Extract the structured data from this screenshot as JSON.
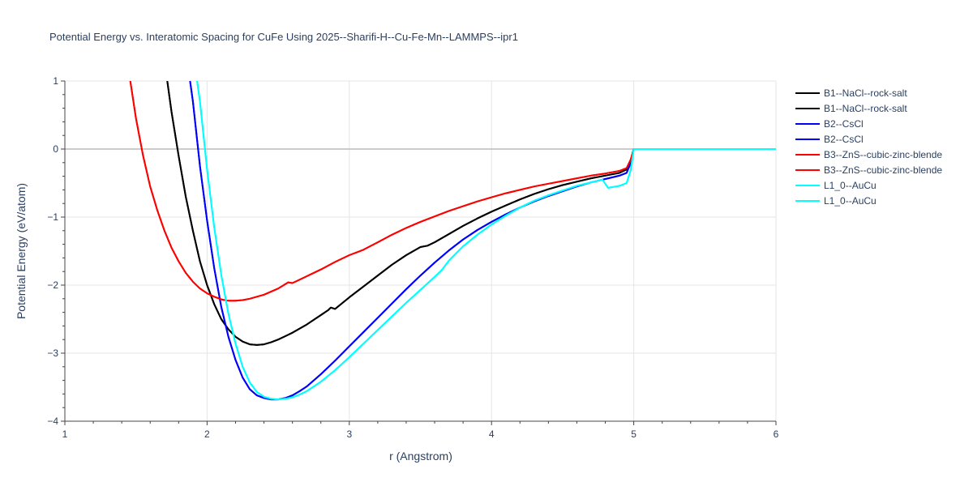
{
  "title": "Potential Energy vs. Interatomic Spacing for CuFe Using 2025--Sharifi-H--Cu-Fe-Mn--LAMMPS--ipr1",
  "chart_data": {
    "type": "line",
    "xlabel": "r (Angstrom)",
    "ylabel": "Potential Energy (eV/atom)",
    "xlim": [
      1,
      6
    ],
    "ylim": [
      -4,
      1
    ],
    "xticks": [
      1,
      2,
      3,
      4,
      5,
      6
    ],
    "xtick_labels": [
      "1",
      "2",
      "3",
      "4",
      "5",
      "6"
    ],
    "yticks": [
      1,
      0,
      -1,
      -2,
      -3,
      -4
    ],
    "ytick_labels": [
      "1",
      "0",
      "−1",
      "−2",
      "−3",
      "−4"
    ],
    "grid": true,
    "legend_position": "right",
    "series": [
      {
        "name": "B1--NaCl--rock-salt",
        "color": "#000000",
        "x": [
          1.72,
          1.75,
          1.8,
          1.85,
          1.9,
          1.95,
          2.0,
          2.05,
          2.1,
          2.15,
          2.2,
          2.25,
          2.3,
          2.35,
          2.4,
          2.45,
          2.5,
          2.55,
          2.6,
          2.7,
          2.8,
          2.85,
          2.87,
          2.9,
          3.0,
          3.1,
          3.2,
          3.3,
          3.4,
          3.5,
          3.55,
          3.6,
          3.7,
          3.8,
          3.9,
          4.0,
          4.1,
          4.2,
          4.3,
          4.4,
          4.5,
          4.6,
          4.7,
          4.8,
          4.9,
          4.95,
          4.98,
          5.0,
          6.0
        ],
        "y": [
          1.0,
          0.55,
          -0.1,
          -0.7,
          -1.2,
          -1.65,
          -2.0,
          -2.28,
          -2.5,
          -2.65,
          -2.76,
          -2.83,
          -2.87,
          -2.88,
          -2.87,
          -2.84,
          -2.8,
          -2.75,
          -2.7,
          -2.58,
          -2.44,
          -2.37,
          -2.33,
          -2.35,
          -2.18,
          -2.02,
          -1.86,
          -1.7,
          -1.56,
          -1.44,
          -1.42,
          -1.37,
          -1.25,
          -1.13,
          -1.02,
          -0.92,
          -0.83,
          -0.74,
          -0.66,
          -0.59,
          -0.53,
          -0.48,
          -0.43,
          -0.39,
          -0.35,
          -0.3,
          -0.15,
          0.0,
          0.0
        ]
      },
      {
        "name": "B1--NaCl--rock-salt",
        "color": "#000000",
        "x": [
          1.72,
          1.75,
          1.8,
          1.85,
          1.9,
          1.95,
          2.0,
          2.05,
          2.1,
          2.15,
          2.2,
          2.25,
          2.3,
          2.35,
          2.4,
          2.45,
          2.5,
          2.55,
          2.6,
          2.7,
          2.8,
          2.85,
          2.87,
          2.9,
          3.0,
          3.1,
          3.2,
          3.3,
          3.4,
          3.5,
          3.55,
          3.6,
          3.7,
          3.8,
          3.9,
          4.0,
          4.1,
          4.2,
          4.3,
          4.4,
          4.5,
          4.6,
          4.7,
          4.8,
          4.9,
          4.95,
          4.98,
          5.0,
          6.0
        ],
        "y": [
          1.0,
          0.55,
          -0.1,
          -0.7,
          -1.2,
          -1.65,
          -2.0,
          -2.28,
          -2.5,
          -2.65,
          -2.76,
          -2.83,
          -2.87,
          -2.88,
          -2.87,
          -2.84,
          -2.8,
          -2.75,
          -2.7,
          -2.58,
          -2.44,
          -2.37,
          -2.33,
          -2.35,
          -2.18,
          -2.02,
          -1.86,
          -1.7,
          -1.56,
          -1.44,
          -1.42,
          -1.37,
          -1.25,
          -1.13,
          -1.02,
          -0.92,
          -0.83,
          -0.74,
          -0.66,
          -0.59,
          -0.53,
          -0.48,
          -0.43,
          -0.39,
          -0.35,
          -0.3,
          -0.15,
          0.0,
          0.0
        ]
      },
      {
        "name": "B2--CsCl",
        "color": "#0000ff",
        "x": [
          1.88,
          1.9,
          1.95,
          2.0,
          2.05,
          2.1,
          2.15,
          2.2,
          2.25,
          2.3,
          2.35,
          2.4,
          2.45,
          2.5,
          2.55,
          2.6,
          2.65,
          2.7,
          2.8,
          2.9,
          3.0,
          3.1,
          3.2,
          3.3,
          3.4,
          3.5,
          3.6,
          3.7,
          3.8,
          3.9,
          4.0,
          4.1,
          4.2,
          4.3,
          4.4,
          4.5,
          4.6,
          4.7,
          4.8,
          4.9,
          4.95,
          4.98,
          5.0,
          6.0
        ],
        "y": [
          1.0,
          0.7,
          -0.25,
          -1.05,
          -1.75,
          -2.32,
          -2.76,
          -3.1,
          -3.36,
          -3.53,
          -3.62,
          -3.66,
          -3.68,
          -3.68,
          -3.66,
          -3.62,
          -3.56,
          -3.49,
          -3.31,
          -3.11,
          -2.9,
          -2.69,
          -2.48,
          -2.27,
          -2.06,
          -1.86,
          -1.67,
          -1.49,
          -1.33,
          -1.19,
          -1.07,
          -0.96,
          -0.86,
          -0.77,
          -0.69,
          -0.62,
          -0.55,
          -0.49,
          -0.44,
          -0.39,
          -0.35,
          -0.2,
          0.0,
          0.0
        ]
      },
      {
        "name": "B2--CsCl",
        "color": "#0000ff",
        "x": [
          1.88,
          1.9,
          1.95,
          2.0,
          2.05,
          2.1,
          2.15,
          2.2,
          2.25,
          2.3,
          2.35,
          2.4,
          2.45,
          2.5,
          2.55,
          2.6,
          2.65,
          2.7,
          2.8,
          2.9,
          3.0,
          3.1,
          3.2,
          3.3,
          3.4,
          3.5,
          3.6,
          3.7,
          3.8,
          3.9,
          4.0,
          4.1,
          4.2,
          4.3,
          4.4,
          4.5,
          4.6,
          4.7,
          4.8,
          4.9,
          4.95,
          4.98,
          5.0,
          6.0
        ],
        "y": [
          1.0,
          0.7,
          -0.25,
          -1.05,
          -1.75,
          -2.32,
          -2.76,
          -3.1,
          -3.36,
          -3.53,
          -3.62,
          -3.66,
          -3.68,
          -3.68,
          -3.66,
          -3.62,
          -3.56,
          -3.49,
          -3.31,
          -3.11,
          -2.9,
          -2.69,
          -2.48,
          -2.27,
          -2.06,
          -1.86,
          -1.67,
          -1.49,
          -1.33,
          -1.19,
          -1.07,
          -0.96,
          -0.86,
          -0.77,
          -0.69,
          -0.62,
          -0.55,
          -0.49,
          -0.44,
          -0.39,
          -0.35,
          -0.2,
          0.0,
          0.0
        ]
      },
      {
        "name": "B3--ZnS--cubic-zinc-blende",
        "color": "#ff0000",
        "x": [
          1.46,
          1.5,
          1.55,
          1.6,
          1.65,
          1.7,
          1.75,
          1.8,
          1.85,
          1.9,
          1.95,
          2.0,
          2.05,
          2.1,
          2.15,
          2.2,
          2.25,
          2.3,
          2.4,
          2.5,
          2.57,
          2.6,
          2.7,
          2.8,
          2.9,
          3.0,
          3.05,
          3.1,
          3.2,
          3.3,
          3.4,
          3.5,
          3.6,
          3.7,
          3.8,
          3.9,
          4.0,
          4.1,
          4.2,
          4.3,
          4.4,
          4.5,
          4.6,
          4.7,
          4.8,
          4.9,
          4.95,
          4.98,
          5.0,
          6.0
        ],
        "y": [
          1.0,
          0.45,
          -0.1,
          -0.55,
          -0.9,
          -1.2,
          -1.45,
          -1.65,
          -1.82,
          -1.95,
          -2.05,
          -2.12,
          -2.17,
          -2.21,
          -2.23,
          -2.23,
          -2.22,
          -2.2,
          -2.14,
          -2.05,
          -1.96,
          -1.97,
          -1.87,
          -1.77,
          -1.66,
          -1.56,
          -1.52,
          -1.48,
          -1.37,
          -1.26,
          -1.16,
          -1.07,
          -0.99,
          -0.91,
          -0.84,
          -0.77,
          -0.71,
          -0.65,
          -0.6,
          -0.55,
          -0.51,
          -0.47,
          -0.43,
          -0.39,
          -0.36,
          -0.32,
          -0.28,
          -0.15,
          0.0,
          0.0
        ]
      },
      {
        "name": "B3--ZnS--cubic-zinc-blende",
        "color": "#ff0000",
        "x": [
          1.46,
          1.5,
          1.55,
          1.6,
          1.65,
          1.7,
          1.75,
          1.8,
          1.85,
          1.9,
          1.95,
          2.0,
          2.05,
          2.1,
          2.15,
          2.2,
          2.25,
          2.3,
          2.4,
          2.5,
          2.57,
          2.6,
          2.7,
          2.8,
          2.9,
          3.0,
          3.05,
          3.1,
          3.2,
          3.3,
          3.4,
          3.5,
          3.6,
          3.7,
          3.8,
          3.9,
          4.0,
          4.1,
          4.2,
          4.3,
          4.4,
          4.5,
          4.6,
          4.7,
          4.8,
          4.9,
          4.95,
          4.98,
          5.0,
          6.0
        ],
        "y": [
          1.0,
          0.45,
          -0.1,
          -0.55,
          -0.9,
          -1.2,
          -1.45,
          -1.65,
          -1.82,
          -1.95,
          -2.05,
          -2.12,
          -2.17,
          -2.21,
          -2.23,
          -2.23,
          -2.22,
          -2.2,
          -2.14,
          -2.05,
          -1.96,
          -1.97,
          -1.87,
          -1.77,
          -1.66,
          -1.56,
          -1.52,
          -1.48,
          -1.37,
          -1.26,
          -1.16,
          -1.07,
          -0.99,
          -0.91,
          -0.84,
          -0.77,
          -0.71,
          -0.65,
          -0.6,
          -0.55,
          -0.51,
          -0.47,
          -0.43,
          -0.39,
          -0.36,
          -0.32,
          -0.28,
          -0.15,
          0.0,
          0.0
        ]
      },
      {
        "name": "L1_0--AuCu",
        "color": "#00ffff",
        "x": [
          1.93,
          1.95,
          2.0,
          2.05,
          2.1,
          2.15,
          2.2,
          2.25,
          2.3,
          2.35,
          2.4,
          2.45,
          2.5,
          2.55,
          2.6,
          2.65,
          2.7,
          2.8,
          2.9,
          3.0,
          3.1,
          3.2,
          3.3,
          3.4,
          3.5,
          3.6,
          3.65,
          3.7,
          3.8,
          3.9,
          4.0,
          4.1,
          4.2,
          4.3,
          4.4,
          4.5,
          4.6,
          4.7,
          4.78,
          4.82,
          4.9,
          4.95,
          4.98,
          5.0,
          6.0
        ],
        "y": [
          1.0,
          0.7,
          -0.3,
          -1.15,
          -1.85,
          -2.42,
          -2.86,
          -3.2,
          -3.43,
          -3.57,
          -3.64,
          -3.67,
          -3.68,
          -3.67,
          -3.65,
          -3.61,
          -3.56,
          -3.42,
          -3.25,
          -3.06,
          -2.86,
          -2.66,
          -2.46,
          -2.26,
          -2.07,
          -1.88,
          -1.78,
          -1.64,
          -1.43,
          -1.26,
          -1.11,
          -0.98,
          -0.86,
          -0.76,
          -0.68,
          -0.61,
          -0.54,
          -0.49,
          -0.45,
          -0.57,
          -0.54,
          -0.5,
          -0.3,
          0.0,
          0.0
        ]
      },
      {
        "name": "L1_0--AuCu",
        "color": "#00ffff",
        "x": [
          1.93,
          1.95,
          2.0,
          2.05,
          2.1,
          2.15,
          2.2,
          2.25,
          2.3,
          2.35,
          2.4,
          2.45,
          2.5,
          2.55,
          2.6,
          2.65,
          2.7,
          2.8,
          2.9,
          3.0,
          3.1,
          3.2,
          3.3,
          3.4,
          3.5,
          3.6,
          3.65,
          3.7,
          3.8,
          3.9,
          4.0,
          4.1,
          4.2,
          4.3,
          4.4,
          4.5,
          4.6,
          4.7,
          4.78,
          4.82,
          4.9,
          4.95,
          4.98,
          5.0,
          6.0
        ],
        "y": [
          1.0,
          0.7,
          -0.3,
          -1.15,
          -1.85,
          -2.42,
          -2.86,
          -3.2,
          -3.43,
          -3.57,
          -3.64,
          -3.67,
          -3.68,
          -3.67,
          -3.65,
          -3.61,
          -3.56,
          -3.42,
          -3.25,
          -3.06,
          -2.86,
          -2.66,
          -2.46,
          -2.26,
          -2.07,
          -1.88,
          -1.78,
          -1.64,
          -1.43,
          -1.26,
          -1.11,
          -0.98,
          -0.86,
          -0.76,
          -0.68,
          -0.61,
          -0.54,
          -0.49,
          -0.45,
          -0.57,
          -0.54,
          -0.5,
          -0.3,
          0.0,
          0.0
        ]
      }
    ]
  }
}
